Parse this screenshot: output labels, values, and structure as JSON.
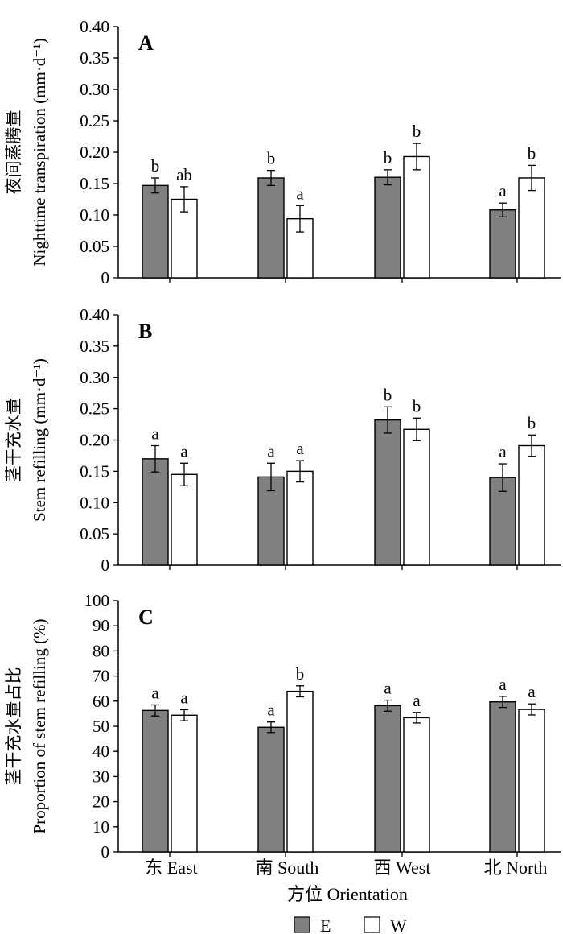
{
  "colors": {
    "E": "#808080",
    "W": "#ffffff",
    "stroke": "#000000"
  },
  "chart_data": [
    {
      "type": "bar",
      "panel": "A",
      "ylabel_cn": "夜间蒸腾量",
      "ylabel_en": "Nighttime transpiration (mm·d⁻¹)",
      "ylim": [
        0,
        0.4
      ],
      "yticks": [
        "0",
        "0.05",
        "0.10",
        "0.15",
        "0.20",
        "0.25",
        "0.30",
        "0.35",
        "0.40"
      ],
      "categories": [
        "东 East",
        "南 South",
        "西 West",
        "北 North"
      ],
      "series": [
        {
          "name": "E",
          "values": [
            0.147,
            0.159,
            0.16,
            0.108
          ],
          "errors": [
            0.012,
            0.012,
            0.012,
            0.011
          ],
          "letters": [
            "b",
            "b",
            "b",
            "a"
          ]
        },
        {
          "name": "W",
          "values": [
            0.125,
            0.094,
            0.193,
            0.159
          ],
          "errors": [
            0.02,
            0.021,
            0.021,
            0.02
          ],
          "letters": [
            "ab",
            "a",
            "b",
            "b"
          ]
        }
      ]
    },
    {
      "type": "bar",
      "panel": "B",
      "ylabel_cn": "茎干充水量",
      "ylabel_en": "Stem refilling (mm·d⁻¹)",
      "ylim": [
        0,
        0.4
      ],
      "yticks": [
        "0",
        "0.05",
        "0.10",
        "0.15",
        "0.20",
        "0.25",
        "0.30",
        "0.35",
        "0.40"
      ],
      "categories": [
        "东 East",
        "南 South",
        "西 West",
        "北 North"
      ],
      "series": [
        {
          "name": "E",
          "values": [
            0.17,
            0.141,
            0.232,
            0.14
          ],
          "errors": [
            0.021,
            0.022,
            0.021,
            0.022
          ],
          "letters": [
            "a",
            "a",
            "b",
            "a"
          ]
        },
        {
          "name": "W",
          "values": [
            0.145,
            0.15,
            0.217,
            0.191
          ],
          "errors": [
            0.018,
            0.017,
            0.018,
            0.017
          ],
          "letters": [
            "a",
            "a",
            "b",
            "b"
          ]
        }
      ]
    },
    {
      "type": "bar",
      "panel": "C",
      "ylabel_cn": "茎干充水量占比",
      "ylabel_en": "Proportion of stem refilling (%)",
      "ylim": [
        0,
        100
      ],
      "yticks": [
        "0",
        "10",
        "20",
        "30",
        "40",
        "50",
        "60",
        "70",
        "80",
        "90",
        "100"
      ],
      "categories": [
        "东 East",
        "南 South",
        "西 West",
        "北 North"
      ],
      "series": [
        {
          "name": "E",
          "values": [
            56.3,
            49.6,
            58.2,
            59.7
          ],
          "errors": [
            2.2,
            2.1,
            2.2,
            2.2
          ],
          "letters": [
            "a",
            "a",
            "a",
            "a"
          ]
        },
        {
          "name": "W",
          "values": [
            54.4,
            63.9,
            53.4,
            56.7
          ],
          "errors": [
            2.2,
            2.2,
            2.1,
            2.2
          ],
          "letters": [
            "a",
            "b",
            "a",
            "a"
          ]
        }
      ]
    }
  ],
  "xaxis": {
    "categories": [
      "东 East",
      "南 South",
      "西 West",
      "北 North"
    ],
    "label": "方位 Orientation"
  },
  "legend": {
    "items": [
      "E",
      "W"
    ]
  }
}
